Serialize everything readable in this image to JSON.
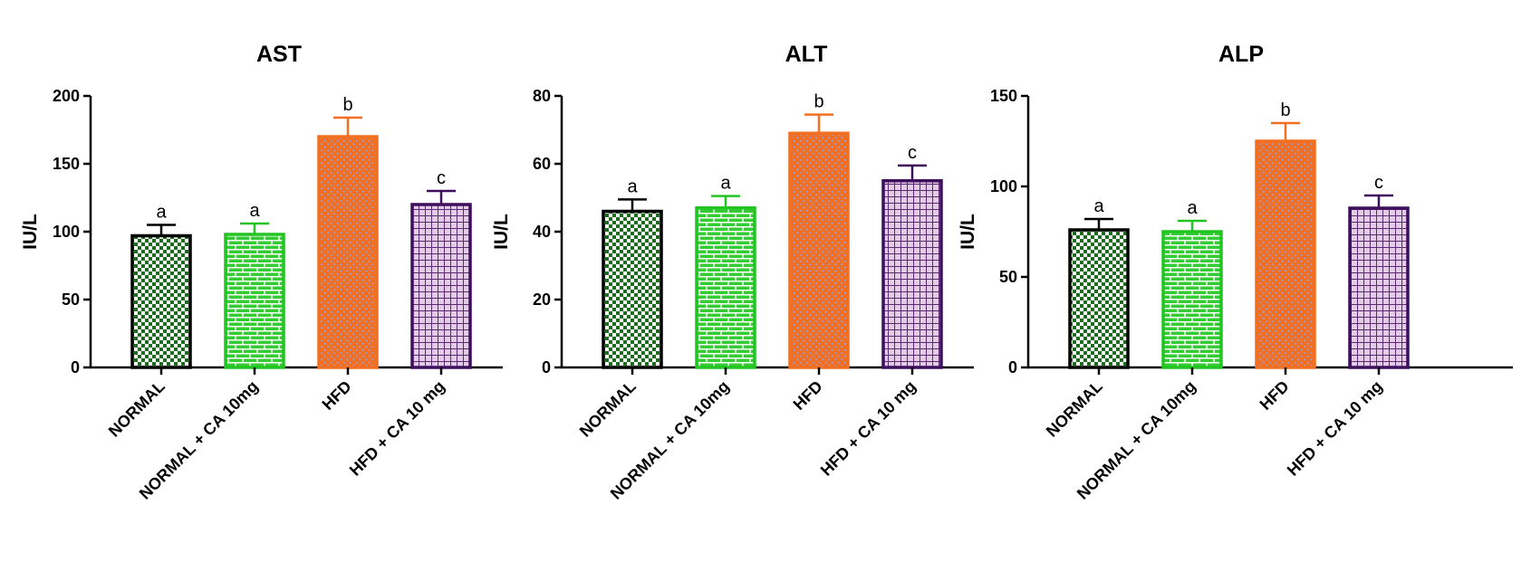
{
  "chart_data": [
    {
      "type": "bar",
      "title": "AST",
      "ylabel": "IU/L",
      "ylim": [
        0,
        200
      ],
      "yticks": [
        0,
        50,
        100,
        150,
        200
      ],
      "categories": [
        "NORMAL",
        "NORMAL + CA 10mg",
        "HFD",
        "HFD + CA 10 mg"
      ],
      "values": [
        97,
        98,
        170,
        120
      ],
      "errors": [
        8,
        8,
        14,
        10
      ],
      "significance": [
        "a",
        "a",
        "b",
        "c"
      ]
    },
    {
      "type": "bar",
      "title": "ALT",
      "ylabel": "IU/L",
      "ylim": [
        0,
        80
      ],
      "yticks": [
        0,
        20,
        40,
        60,
        80
      ],
      "categories": [
        "NORMAL",
        "NORMAL + CA 10mg",
        "HFD",
        "HFD + CA 10 mg"
      ],
      "values": [
        46,
        47,
        69,
        55
      ],
      "errors": [
        3.5,
        3.5,
        5.5,
        4.5
      ],
      "significance": [
        "a",
        "a",
        "b",
        "c"
      ]
    },
    {
      "type": "bar",
      "title": "ALP",
      "ylabel": "IU/L",
      "ylim": [
        0,
        150
      ],
      "yticks": [
        0,
        50,
        100,
        150
      ],
      "categories": [
        "NORMAL",
        "NORMAL + CA 10mg",
        "HFD",
        "HFD + CA 10 mg"
      ],
      "values": [
        76,
        75,
        125,
        88
      ],
      "errors": [
        6,
        6,
        10,
        7
      ],
      "significance": [
        "a",
        "a",
        "b",
        "c"
      ]
    }
  ],
  "bar_styles": [
    {
      "stroke": "#000000",
      "fill": "#1e6b1e",
      "pattern": "checkerboard-icon",
      "accent": "#ffffff"
    },
    {
      "stroke": "#22c422",
      "fill": "#33cc33",
      "pattern": "brick-icon",
      "accent": "#ffffff"
    },
    {
      "stroke": "#f26f21",
      "fill": "#f26f21",
      "pattern": "dots-icon",
      "accent": "#9b9bd0"
    },
    {
      "stroke": "#3d0f5c",
      "fill": "#e4cce8",
      "pattern": "grid-icon",
      "accent": "#5a2a70"
    }
  ]
}
